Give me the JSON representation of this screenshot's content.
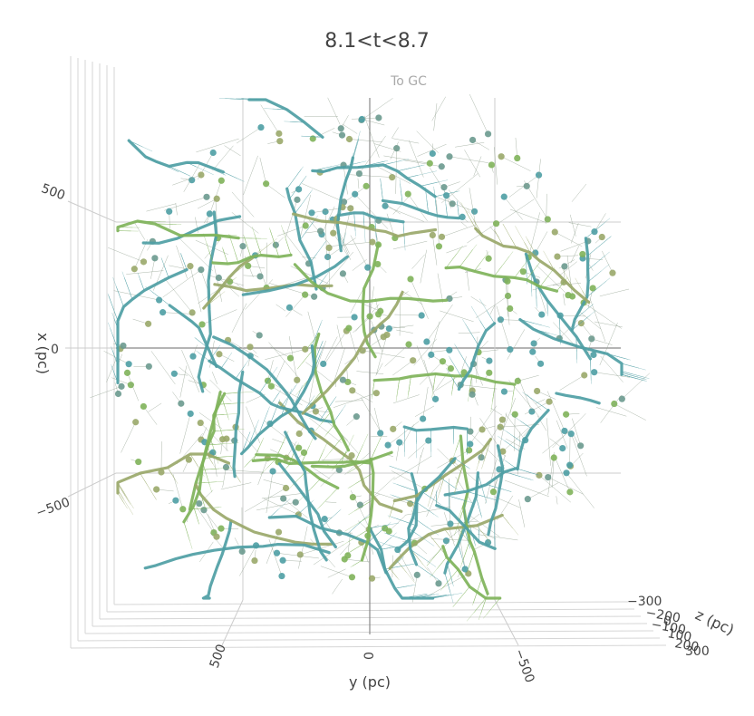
{
  "chart_data": {
    "type": "scatter",
    "title": "8.1<t<8.7",
    "annotation": "To GC",
    "axes": {
      "x": {
        "label": "x (pc)",
        "ticks": [
          "500",
          "0",
          "−500"
        ],
        "range": [
          -700,
          700
        ]
      },
      "y": {
        "label": "y (pc)",
        "ticks": [
          "500",
          "0",
          "−500"
        ],
        "range": [
          -700,
          700
        ]
      },
      "z": {
        "label": "z (pc)",
        "ticks": [
          "−300",
          "−200",
          "−100",
          "0",
          "100",
          "200",
          "300"
        ],
        "range": [
          -300,
          300
        ]
      }
    },
    "grid": true,
    "colors": {
      "teal": "#4e9ea4",
      "green": "#7fb35a",
      "olive": "#9aa86a",
      "marker": "#6b9a8f",
      "grid": "#cccccc",
      "zeroline": "#888888"
    },
    "marker_count": 520,
    "track_count": 60,
    "seed": 20240815,
    "note": ""
  }
}
